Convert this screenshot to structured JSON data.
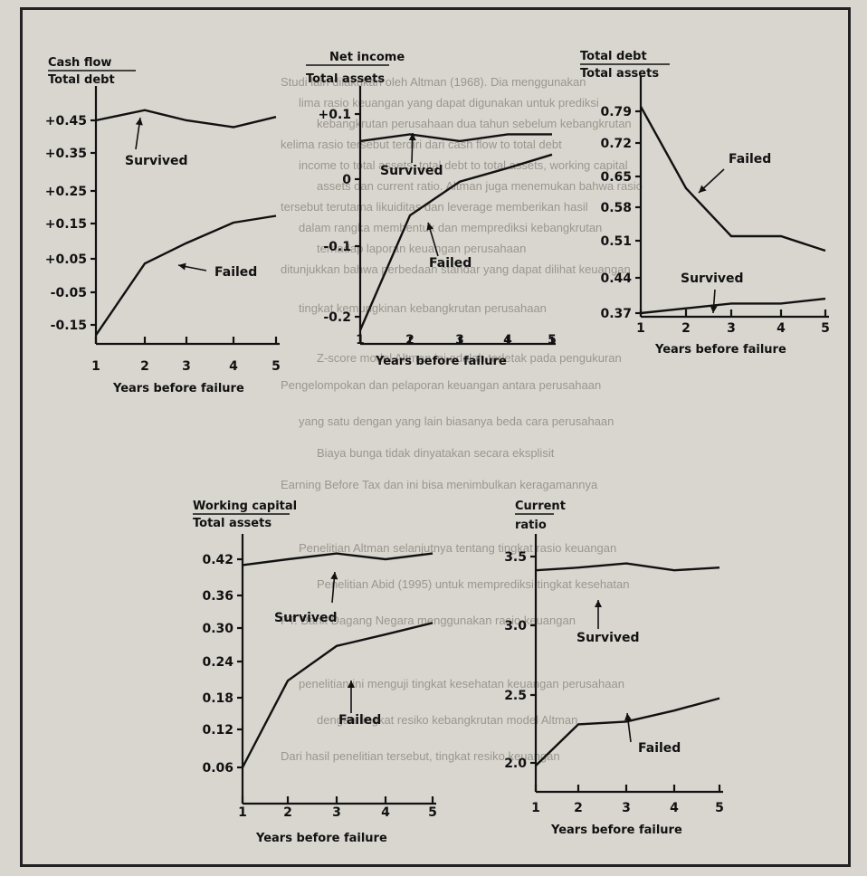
{
  "background_text": [
    "Studi lain dilakukan oleh Altman (1968). Dia menggunakan",
    "lima rasio keuangan yang dapat digunakan untuk prediksi",
    "kebangkrutan perusahaan dua tahun sebelum kebangkrutan",
    "kelima rasio tersebut terdiri dari cash flow to total debt",
    "income to total assets, total debt to total assets, working capital",
    "assets dan current ratio. Altman juga menemukan bahwa rasio",
    "tersebut terutama likuiditas dan leverage memberikan hasil",
    "dalam rangka membentuk dan memprediksi kebangkrutan",
    "terhadap laporan keuangan perusahaan",
    "ditunjukkan bahwa perbedaan standar yang dapat dilihat keuangan",
    "tingkat kemungkinan kebangkrutan perusahaan",
    "Z-score model Altman ini adalah terletak pada pengukuran",
    "Pengelompokan dan pelaporan keuangan antara perusahaan",
    "yang satu dengan yang lain biasanya beda cara perusahaan",
    "Biaya bunga tidak dinyatakan secara eksplisit",
    "Earning Before Tax dan ini bisa menimbulkan keragamannya",
    "Penelitian Altman selanjutnya tentang tingkat rasio keuangan",
    "Penelitian Abid (1995) untuk memprediksi tingkat kesehatan",
    "PT. Bank Dagang Negara menggunakan rasio keuangan",
    "penelitian ini menguji tingkat kesehatan keuangan perusahaan",
    "dengan tingkat resiko kebangkrutan model Altman",
    "Dari hasil penelitian tersebut, tingkat resiko keuangan"
  ],
  "chart_data": [
    {
      "type": "line",
      "title_numerator": "Cash flow",
      "title_denominator": "Total debt",
      "xlabel": "Years before failure",
      "x": [
        1,
        2,
        3,
        4,
        5
      ],
      "x_ticks": [
        "1",
        "2",
        "3",
        "4",
        "5"
      ],
      "ylim": [
        -0.2,
        0.5
      ],
      "y_ticks": [
        "+0.45",
        "+0.35",
        "+0.25",
        "+0.15",
        "+0.05",
        "-0.05",
        "-0.15"
      ],
      "series": [
        {
          "label": "Survived",
          "values": [
            0.45,
            0.48,
            0.45,
            0.43,
            0.46
          ]
        },
        {
          "label": "Failed",
          "values": [
            -0.18,
            0.03,
            0.09,
            0.15,
            0.17
          ]
        }
      ]
    },
    {
      "type": "line",
      "title_numerator": "Net income",
      "title_denominator": "Total assets",
      "xlabel": "Years before failure",
      "x": [
        1,
        2,
        3,
        4,
        5
      ],
      "x_ticks": [
        "1",
        "2",
        "3",
        "4",
        "5"
      ],
      "ylim": [
        -0.24,
        0.14
      ],
      "y_ticks": [
        "+0.1",
        "0",
        "-0.1",
        "-0.2"
      ],
      "series": [
        {
          "label": "Survived",
          "values": [
            0.06,
            0.07,
            0.06,
            0.07,
            0.07
          ]
        },
        {
          "label": "Failed",
          "values": [
            -0.22,
            -0.05,
            0.0,
            0.02,
            0.04
          ]
        }
      ]
    },
    {
      "type": "line",
      "title_numerator": "Total debt",
      "title_denominator": "Total assets",
      "xlabel": "Years before failure",
      "x": [
        1,
        2,
        3,
        4,
        5
      ],
      "x_ticks": [
        "1",
        "2",
        "3",
        "4",
        "5"
      ],
      "ylim": [
        0.34,
        0.82
      ],
      "y_ticks": [
        "0.79",
        "0.72",
        "0.65",
        "0.58",
        "0.51",
        "0.44",
        "0.37"
      ],
      "series": [
        {
          "label": "Failed",
          "values": [
            0.8,
            0.63,
            0.53,
            0.53,
            0.5
          ]
        },
        {
          "label": "Survived",
          "values": [
            0.37,
            0.38,
            0.39,
            0.39,
            0.4
          ]
        }
      ]
    },
    {
      "type": "line",
      "title_numerator": "Working capital",
      "title_denominator": "Total assets",
      "xlabel": "Years before failure",
      "x": [
        1,
        2,
        3,
        4,
        5
      ],
      "x_ticks": [
        "1",
        "2",
        "3",
        "4",
        "5"
      ],
      "ylim": [
        0.02,
        0.46
      ],
      "y_ticks": [
        "0.42",
        "0.36",
        "0.30",
        "0.24",
        "0.18",
        "0.12",
        "0.06"
      ],
      "series": [
        {
          "label": "Survived",
          "values": [
            0.41,
            0.42,
            0.43,
            0.42,
            0.43
          ]
        },
        {
          "label": "Failed",
          "values": [
            0.06,
            0.21,
            0.27,
            0.29,
            0.31
          ]
        }
      ]
    },
    {
      "type": "line",
      "title_numerator": "Current",
      "title_denominator": "ratio",
      "xlabel": "Years before failure",
      "x": [
        1,
        2,
        3,
        4,
        5
      ],
      "x_ticks": [
        "1",
        "2",
        "3",
        "4",
        "5"
      ],
      "ylim": [
        1.85,
        3.7
      ],
      "y_ticks": [
        "3.5",
        "3.0",
        "2.5",
        "2.0"
      ],
      "series": [
        {
          "label": "Survived",
          "values": [
            3.4,
            3.42,
            3.45,
            3.4,
            3.42
          ]
        },
        {
          "label": "Failed",
          "values": [
            1.98,
            2.28,
            2.3,
            2.38,
            2.47
          ]
        }
      ]
    }
  ]
}
